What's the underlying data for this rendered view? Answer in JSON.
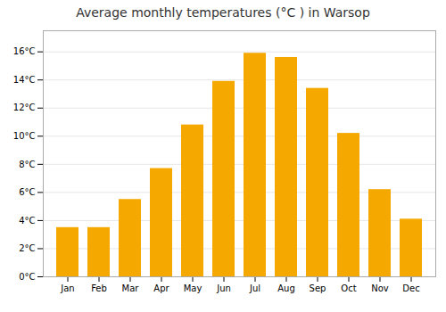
{
  "chart_data": {
    "type": "bar",
    "title": "Average monthly temperatures (°C ) in Warsop",
    "categories": [
      "Jan",
      "Feb",
      "Mar",
      "Apr",
      "May",
      "Jun",
      "Jul",
      "Aug",
      "Sep",
      "Oct",
      "Nov",
      "Dec"
    ],
    "values": [
      3.5,
      3.5,
      5.5,
      7.7,
      10.8,
      13.9,
      15.9,
      15.6,
      13.4,
      10.2,
      6.2,
      4.1
    ],
    "color": "#F5A800",
    "ylim": [
      0,
      17.5
    ],
    "yticks": [
      {
        "value": 0,
        "label": "0°C"
      },
      {
        "value": 2,
        "label": "2°C"
      },
      {
        "value": 4,
        "label": "4°C"
      },
      {
        "value": 6,
        "label": "6°C"
      },
      {
        "value": 8,
        "label": "8°C"
      },
      {
        "value": 10,
        "label": "10°C"
      },
      {
        "value": 12,
        "label": "12°C"
      },
      {
        "value": 14,
        "label": "14°C"
      },
      {
        "value": 16,
        "label": "16°C"
      }
    ],
    "grid": true
  }
}
